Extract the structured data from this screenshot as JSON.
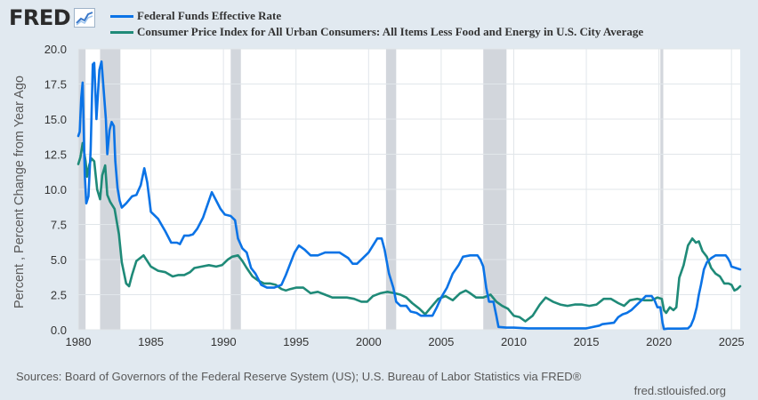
{
  "brand": {
    "name": "FRED",
    "icon": "fred-line-chart-icon"
  },
  "legend": [
    {
      "name": "Federal Funds Effective Rate",
      "color": "#0b73e6"
    },
    {
      "name": "Consumer Price Index for All Urban Consumers: All Items Less Food and Energy in U.S. City Average",
      "color": "#1f8a78"
    }
  ],
  "footer": {
    "sources": "Sources: Board of Governors of the Federal Reserve System (US); U.S. Bureau of Labor Statistics via FRED®",
    "url": "fred.stlouisfed.org"
  },
  "chart_data": {
    "type": "line",
    "ylabel": "Percent , Percent Change from Year Ago",
    "xlabel": "",
    "xlim": [
      1980.0,
      2025.6
    ],
    "ylim": [
      0,
      20
    ],
    "xticks": [
      1980,
      1985,
      1990,
      1995,
      2000,
      2005,
      2010,
      2015,
      2020,
      2025
    ],
    "xtick_labels": [
      "1980",
      "1985",
      "1990",
      "1995",
      "2000",
      "2005",
      "2010",
      "2015",
      "2020",
      "2025"
    ],
    "yticks": [
      0,
      2.5,
      5,
      7.5,
      10,
      12.5,
      15,
      17.5,
      20
    ],
    "ytick_labels": [
      "0.0",
      "2.5",
      "5.0",
      "7.5",
      "10.0",
      "12.5",
      "15.0",
      "17.5",
      "20.0"
    ],
    "grid": true,
    "recessions": [
      [
        1980.0,
        1980.5
      ],
      [
        1981.5,
        1982.9
      ],
      [
        1990.5,
        1991.2
      ],
      [
        2001.2,
        2001.9
      ],
      [
        2007.9,
        2009.5
      ],
      [
        2020.1,
        2020.3
      ]
    ],
    "series": [
      {
        "name": "Federal Funds Effective Rate",
        "color": "#0b73e6",
        "x": [
          1980.0,
          1980.1,
          1980.2,
          1980.3,
          1980.45,
          1980.55,
          1980.7,
          1980.85,
          1981.0,
          1981.1,
          1981.25,
          1981.45,
          1981.6,
          1981.75,
          1981.9,
          1982.0,
          1982.15,
          1982.3,
          1982.45,
          1982.55,
          1982.7,
          1982.85,
          1983.0,
          1983.3,
          1983.7,
          1984.0,
          1984.3,
          1984.55,
          1984.75,
          1985.0,
          1985.5,
          1986.0,
          1986.4,
          1986.8,
          1987.0,
          1987.3,
          1987.6,
          1987.9,
          1988.2,
          1988.6,
          1988.9,
          1989.2,
          1989.5,
          1989.8,
          1990.1,
          1990.5,
          1990.8,
          1991.0,
          1991.3,
          1991.6,
          1991.9,
          1992.2,
          1992.6,
          1993.0,
          1993.5,
          1994.0,
          1994.3,
          1994.6,
          1994.9,
          1995.2,
          1995.6,
          1996.0,
          1996.5,
          1997.0,
          1997.5,
          1998.0,
          1998.6,
          1998.9,
          1999.2,
          1999.6,
          2000.0,
          2000.3,
          2000.6,
          2000.9,
          2001.1,
          2001.4,
          2001.7,
          2001.9,
          2002.2,
          2002.6,
          2002.9,
          2003.3,
          2003.6,
          2004.0,
          2004.4,
          2004.7,
          2005.0,
          2005.4,
          2005.8,
          2006.2,
          2006.5,
          2007.0,
          2007.5,
          2007.7,
          2007.9,
          2008.1,
          2008.3,
          2008.6,
          2008.8,
          2008.95,
          2009.5,
          2010,
          2011,
          2012,
          2013,
          2014,
          2015,
          2015.9,
          2016.1,
          2016.9,
          2017.2,
          2017.5,
          2017.8,
          2018.1,
          2018.5,
          2018.8,
          2019.1,
          2019.5,
          2019.7,
          2019.9,
          2020.1,
          2020.25,
          2020.35,
          2020.6,
          2021,
          2021.5,
          2022.0,
          2022.2,
          2022.4,
          2022.6,
          2022.75,
          2022.9,
          2023.1,
          2023.3,
          2023.6,
          2023.9,
          2024.3,
          2024.6,
          2024.75,
          2024.9,
          2025.0,
          2025.6
        ],
        "values": [
          13.8,
          14.1,
          16.5,
          17.6,
          11.0,
          9.0,
          9.5,
          12.8,
          18.9,
          19.0,
          15.0,
          18.5,
          19.1,
          17.0,
          15.0,
          12.5,
          14.2,
          14.8,
          14.5,
          12.0,
          10.1,
          9.2,
          8.7,
          9.0,
          9.5,
          9.6,
          10.3,
          11.5,
          10.5,
          8.4,
          7.9,
          7.0,
          6.2,
          6.2,
          6.1,
          6.7,
          6.7,
          6.8,
          7.2,
          8.0,
          8.9,
          9.8,
          9.2,
          8.6,
          8.2,
          8.1,
          7.8,
          6.5,
          5.8,
          5.5,
          4.4,
          4.0,
          3.2,
          3.0,
          3.0,
          3.2,
          3.9,
          4.7,
          5.5,
          6.0,
          5.7,
          5.3,
          5.3,
          5.5,
          5.5,
          5.5,
          5.1,
          4.7,
          4.7,
          5.1,
          5.5,
          6.0,
          6.5,
          6.5,
          5.7,
          4.0,
          3.0,
          2.0,
          1.7,
          1.7,
          1.3,
          1.2,
          1.0,
          1.0,
          1.0,
          1.6,
          2.3,
          3.0,
          4.0,
          4.6,
          5.2,
          5.3,
          5.3,
          5.0,
          4.5,
          3.0,
          2.0,
          2.0,
          1.0,
          0.2,
          0.15,
          0.15,
          0.1,
          0.1,
          0.1,
          0.1,
          0.1,
          0.3,
          0.4,
          0.5,
          0.9,
          1.1,
          1.2,
          1.4,
          1.8,
          2.1,
          2.4,
          2.4,
          2.1,
          1.6,
          1.6,
          0.5,
          0.05,
          0.08,
          0.08,
          0.08,
          0.1,
          0.3,
          0.8,
          1.6,
          2.5,
          3.2,
          4.3,
          4.8,
          5.1,
          5.3,
          5.3,
          5.3,
          5.1,
          4.8,
          4.5,
          4.3
        ],
        "x_continued_note": "",
        "x_tail": [],
        "values_tail": []
      },
      {
        "name": "Consumer Price Index for All Urban Consumers: All Items Less Food and Energy in U.S. City Average",
        "color": "#1f8a78",
        "x": [
          1980.0,
          1980.15,
          1980.3,
          1980.5,
          1980.6,
          1980.75,
          1980.9,
          1981.1,
          1981.3,
          1981.5,
          1981.65,
          1981.85,
          1982.0,
          1982.2,
          1982.5,
          1982.8,
          1983.0,
          1983.3,
          1983.5,
          1983.7,
          1984.0,
          1984.5,
          1985.0,
          1985.5,
          1986.0,
          1986.5,
          1986.9,
          1987.3,
          1987.7,
          1988.0,
          1988.5,
          1989.0,
          1989.5,
          1989.9,
          1990.3,
          1990.6,
          1991.0,
          1991.3,
          1991.6,
          1992.0,
          1992.4,
          1992.8,
          1993.2,
          1993.6,
          1994.0,
          1994.3,
          1994.6,
          1995.0,
          1995.5,
          1996.0,
          1996.5,
          1997.0,
          1997.5,
          1998.0,
          1998.5,
          1999.0,
          1999.5,
          1999.9,
          2000.3,
          2000.8,
          2001.3,
          2001.8,
          2002.2,
          2002.6,
          2003.0,
          2003.5,
          2003.9,
          2004.3,
          2004.8,
          2005.3,
          2005.8,
          2006.3,
          2006.7,
          2007.0,
          2007.4,
          2007.9,
          2008.4,
          2008.8,
          2009.2,
          2009.6,
          2010.0,
          2010.4,
          2010.8,
          2011.3,
          2011.8,
          2012.2,
          2012.7,
          2013.2,
          2013.7,
          2014.2,
          2014.7,
          2015.2,
          2015.7,
          2016.2,
          2016.7,
          2017.2,
          2017.6,
          2018.0,
          2018.5,
          2019.0,
          2019.5,
          2019.9,
          2020.2,
          2020.35,
          2020.5,
          2020.75,
          2021.0,
          2021.2,
          2021.4,
          2021.7,
          2022.0,
          2022.3,
          2022.55,
          2022.75,
          2023.0,
          2023.3,
          2023.6,
          2023.9,
          2024.2,
          2024.5,
          2024.8,
          2025.0,
          2025.2,
          2025.4,
          2025.6
        ],
        "values": [
          11.8,
          12.3,
          13.3,
          12.0,
          10.9,
          11.7,
          12.2,
          12.0,
          10.0,
          9.3,
          11.0,
          11.7,
          9.6,
          9.1,
          8.6,
          6.8,
          4.8,
          3.3,
          3.1,
          3.9,
          4.9,
          5.3,
          4.5,
          4.2,
          4.1,
          3.8,
          3.9,
          3.9,
          4.1,
          4.4,
          4.5,
          4.6,
          4.5,
          4.6,
          5.0,
          5.2,
          5.3,
          4.9,
          4.4,
          3.8,
          3.5,
          3.3,
          3.3,
          3.2,
          2.9,
          2.8,
          2.9,
          3.0,
          3.0,
          2.6,
          2.7,
          2.5,
          2.3,
          2.3,
          2.3,
          2.2,
          2.0,
          2.0,
          2.4,
          2.6,
          2.7,
          2.6,
          2.5,
          2.3,
          1.9,
          1.5,
          1.1,
          1.6,
          2.2,
          2.4,
          2.1,
          2.6,
          2.8,
          2.6,
          2.3,
          2.3,
          2.5,
          2.0,
          1.7,
          1.5,
          1.0,
          0.9,
          0.6,
          1.0,
          1.8,
          2.3,
          2.0,
          1.8,
          1.7,
          1.8,
          1.8,
          1.7,
          1.8,
          2.2,
          2.2,
          1.9,
          1.7,
          2.1,
          2.2,
          2.1,
          2.1,
          2.3,
          2.2,
          1.4,
          1.2,
          1.6,
          1.4,
          1.6,
          3.7,
          4.6,
          6.0,
          6.5,
          6.2,
          6.3,
          5.6,
          5.2,
          4.4,
          4.0,
          3.8,
          3.3,
          3.3,
          3.2,
          2.8,
          2.9,
          3.1
        ],
        "x_tail": [],
        "values_tail": []
      }
    ]
  }
}
